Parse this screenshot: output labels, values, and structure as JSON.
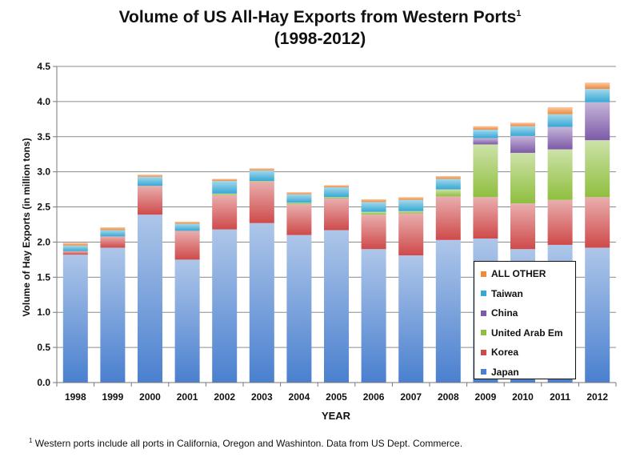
{
  "title_line1": "Volume of US All-Hay Exports from Western Ports",
  "title_sup": "1",
  "title_line2": "(1998-2012)",
  "footnote_sup": "1",
  "footnote": "Western ports include all ports in California, Oregon and Washinton. Data from US Dept. Commerce.",
  "chart_data": {
    "type": "bar",
    "stacked": true,
    "title": "Volume of US All-Hay Exports from Western Ports (1998-2012)",
    "xlabel": "YEAR",
    "ylabel": "Volume of Hay Exports (in million tons)",
    "ylim": [
      0,
      4.5
    ],
    "yticks": [
      "0.0",
      "0.5",
      "1.0",
      "1.5",
      "2.0",
      "2.5",
      "3.0",
      "3.5",
      "4.0",
      "4.5"
    ],
    "grid": true,
    "legend_position": "bottom-right",
    "categories": [
      "1998",
      "1999",
      "2000",
      "2001",
      "2002",
      "2003",
      "2004",
      "2005",
      "2006",
      "2007",
      "2008",
      "2009",
      "2010",
      "2011",
      "2012"
    ],
    "series": [
      {
        "name": "Japan",
        "color": "#4a80cf",
        "values": [
          1.82,
          1.92,
          2.39,
          1.75,
          2.18,
          2.27,
          2.1,
          2.17,
          1.9,
          1.81,
          2.03,
          2.05,
          1.9,
          1.96,
          1.92
        ]
      },
      {
        "name": "Korea",
        "color": "#cf4a4a",
        "values": [
          0.05,
          0.16,
          0.41,
          0.41,
          0.49,
          0.59,
          0.44,
          0.45,
          0.49,
          0.6,
          0.62,
          0.59,
          0.65,
          0.64,
          0.72
        ]
      },
      {
        "name": "United Arab Em",
        "color": "#8fbf3f",
        "values": [
          0.0,
          0.0,
          0.0,
          0.0,
          0.02,
          0.01,
          0.02,
          0.02,
          0.04,
          0.03,
          0.1,
          0.75,
          0.72,
          0.72,
          0.81
        ]
      },
      {
        "name": "China",
        "color": "#7d5aa8",
        "values": [
          0.0,
          0.0,
          0.0,
          0.0,
          0.0,
          0.0,
          0.0,
          0.0,
          0.0,
          0.0,
          0.0,
          0.09,
          0.24,
          0.32,
          0.54
        ]
      },
      {
        "name": "Taiwan",
        "color": "#37a8d4",
        "values": [
          0.08,
          0.09,
          0.13,
          0.1,
          0.18,
          0.15,
          0.12,
          0.14,
          0.14,
          0.16,
          0.15,
          0.12,
          0.14,
          0.18,
          0.19
        ]
      },
      {
        "name": "ALL OTHER",
        "color": "#ef8a3a",
        "values": [
          0.04,
          0.04,
          0.03,
          0.03,
          0.03,
          0.03,
          0.03,
          0.03,
          0.04,
          0.04,
          0.04,
          0.05,
          0.05,
          0.1,
          0.09
        ]
      }
    ]
  }
}
